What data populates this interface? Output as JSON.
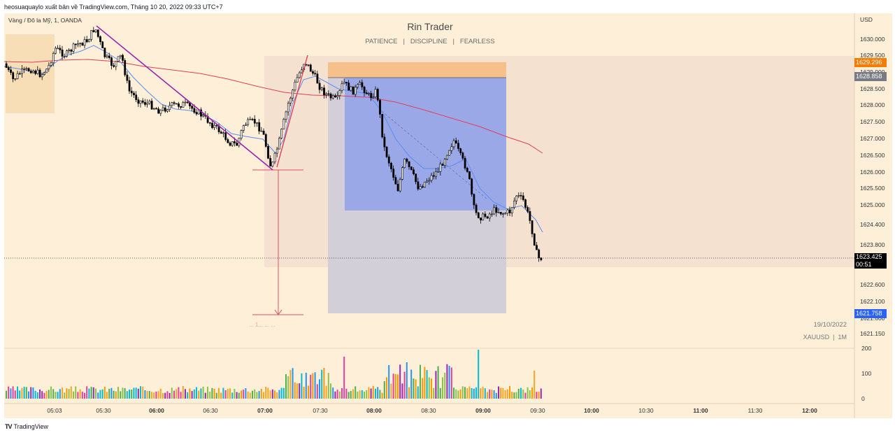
{
  "header": {
    "caption": "heosuaquaylo xuất bản về TradingView.com, Tháng 10 20, 2022 09:33 UTC+7"
  },
  "symbol_title": "Vàng / Đô la Mỹ, 1, OANDA",
  "watermark": {
    "title": "Rin Trader",
    "subtitle": "PATIENCE   |   DISCIPLINE   |   FEARLESS"
  },
  "axis": {
    "currency": "USD",
    "price_ticks": [
      "1630.000",
      "1629.500",
      "1629.000",
      "1628.500",
      "1628.000",
      "1627.500",
      "1627.000",
      "1626.500",
      "1626.000",
      "1625.500",
      "1625.000",
      "1624.400",
      "1623.800",
      "1622.600",
      "1622.100",
      "1621.600",
      "1621.150"
    ],
    "time_ticks": [
      "05:03",
      "05:30",
      "06:00",
      "06:30",
      "07:00",
      "07:30",
      "08:00",
      "08:30",
      "09:00",
      "09:30",
      "10:00",
      "10:30",
      "11:00",
      "11:30",
      "12:00"
    ],
    "volume_ticks": [
      "200",
      "100",
      "0"
    ]
  },
  "price_labels": {
    "stop": "1629.296",
    "entry": "1628.858",
    "last": "1623.425",
    "countdown": "00:51",
    "target": "1621.758"
  },
  "info": {
    "date": "19/10/2022",
    "instrument": "XAUUSD  |  1M"
  },
  "measure_label": "... 1... ... ...",
  "footer": {
    "brand": "TradingView"
  },
  "colors": {
    "background": "#fdefd8",
    "up_candle": "#ffffff",
    "down_candle": "#000000",
    "ema_fast": "#5b8def",
    "ema_slow": "#e0405a",
    "trendline": "#9c27b0",
    "target_zone": "#8e9fe8",
    "stop_zone": "#f5c08a",
    "last_price": "#000000",
    "target_label": "#2962ff",
    "stop_label": "#f57c00",
    "entry_label": "#787b86"
  },
  "chart_data": {
    "type": "candlestick",
    "timeframe": "1m",
    "x": [
      "05:03",
      "05:30",
      "06:00",
      "06:30",
      "07:00",
      "07:30",
      "08:00",
      "08:30",
      "09:00",
      "09:30"
    ],
    "close": [
      1628.8,
      1629.6,
      1627.9,
      1627.4,
      1626.0,
      1629.3,
      1628.4,
      1625.9,
      1625.0,
      1623.4
    ],
    "short_position": {
      "entry": 1628.858,
      "stop": 1629.296,
      "target": 1621.758
    },
    "last_price": 1623.425,
    "ylim": [
      1620.8,
      1631.0
    ]
  }
}
